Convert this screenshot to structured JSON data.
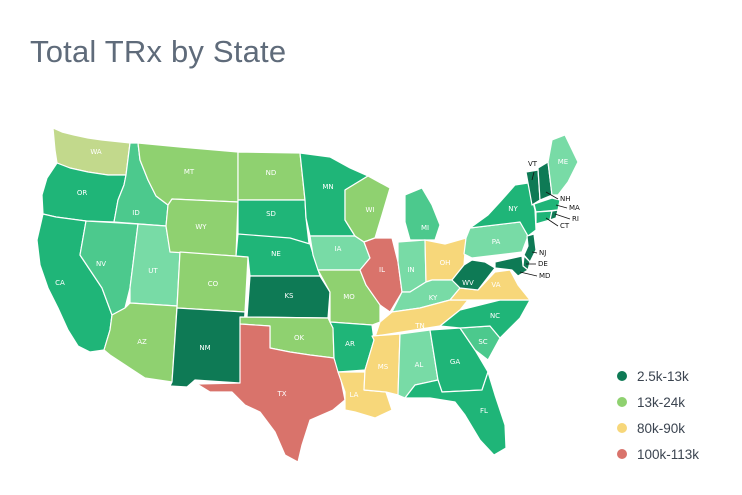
{
  "title": "Total TRx by State",
  "colors": {
    "dark": "#0e7a55",
    "med": "#1fb578",
    "medlight": "#4cc98d",
    "light": "#78dba6",
    "green": "#8fd170",
    "olive": "#c2d98c",
    "yellow": "#f7d77a",
    "red": "#d9736b"
  },
  "legend": [
    {
      "label": "2.5k-13k",
      "color": "#0e7a55"
    },
    {
      "label": "13k-24k",
      "color": "#8fd170"
    },
    {
      "label": "80k-90k",
      "color": "#f7d77a"
    },
    {
      "label": "100k-113k",
      "color": "#d9736b"
    }
  ],
  "states": [
    {
      "abbr": "WA",
      "fill": "olive"
    },
    {
      "abbr": "OR",
      "fill": "med"
    },
    {
      "abbr": "CA",
      "fill": "med"
    },
    {
      "abbr": "ID",
      "fill": "medlight"
    },
    {
      "abbr": "NV",
      "fill": "medlight"
    },
    {
      "abbr": "UT",
      "fill": "light"
    },
    {
      "abbr": "AZ",
      "fill": "green"
    },
    {
      "abbr": "MT",
      "fill": "green"
    },
    {
      "abbr": "WY",
      "fill": "green"
    },
    {
      "abbr": "CO",
      "fill": "green"
    },
    {
      "abbr": "NM",
      "fill": "dark"
    },
    {
      "abbr": "ND",
      "fill": "green"
    },
    {
      "abbr": "SD",
      "fill": "med"
    },
    {
      "abbr": "NE",
      "fill": "med"
    },
    {
      "abbr": "KS",
      "fill": "dark"
    },
    {
      "abbr": "OK",
      "fill": "green"
    },
    {
      "abbr": "TX",
      "fill": "red"
    },
    {
      "abbr": "MN",
      "fill": "med"
    },
    {
      "abbr": "IA",
      "fill": "light"
    },
    {
      "abbr": "MO",
      "fill": "green"
    },
    {
      "abbr": "AR",
      "fill": "med"
    },
    {
      "abbr": "LA",
      "fill": "yellow"
    },
    {
      "abbr": "WI",
      "fill": "green"
    },
    {
      "abbr": "IL",
      "fill": "red"
    },
    {
      "abbr": "MI",
      "fill": "medlight"
    },
    {
      "abbr": "IN",
      "fill": "light"
    },
    {
      "abbr": "OH",
      "fill": "yellow"
    },
    {
      "abbr": "KY",
      "fill": "light"
    },
    {
      "abbr": "TN",
      "fill": "yellow"
    },
    {
      "abbr": "MS",
      "fill": "yellow"
    },
    {
      "abbr": "AL",
      "fill": "light"
    },
    {
      "abbr": "GA",
      "fill": "med"
    },
    {
      "abbr": "FL",
      "fill": "med"
    },
    {
      "abbr": "SC",
      "fill": "medlight"
    },
    {
      "abbr": "NC",
      "fill": "med"
    },
    {
      "abbr": "VA",
      "fill": "yellow"
    },
    {
      "abbr": "WV",
      "fill": "dark"
    },
    {
      "abbr": "PA",
      "fill": "light"
    },
    {
      "abbr": "NY",
      "fill": "med"
    },
    {
      "abbr": "VT",
      "fill": "dark"
    },
    {
      "abbr": "NH",
      "fill": "dark"
    },
    {
      "abbr": "ME",
      "fill": "light"
    },
    {
      "abbr": "MA",
      "fill": "med"
    },
    {
      "abbr": "RI",
      "fill": "dark"
    },
    {
      "abbr": "CT",
      "fill": "med"
    },
    {
      "abbr": "NJ",
      "fill": "dark"
    },
    {
      "abbr": "DE",
      "fill": "dark"
    },
    {
      "abbr": "MD",
      "fill": "dark"
    }
  ]
}
